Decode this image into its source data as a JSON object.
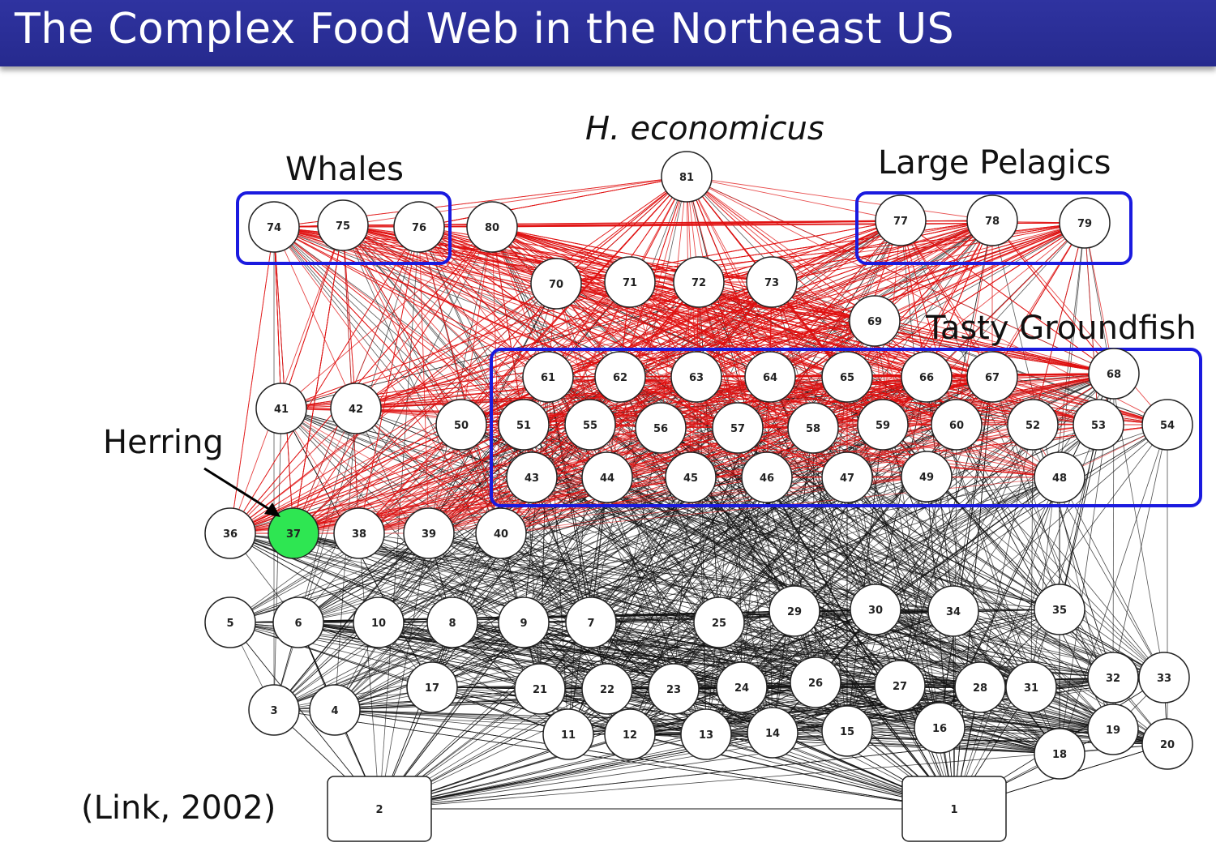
{
  "title": "The Complex Food Web in the Northeast US",
  "citation": "(Link, 2002)",
  "groups": {
    "whales": "Whales",
    "h_economicus": "H. economicus",
    "large_pelagics": "Large Pelagics",
    "tasty_groundfish": "Tasty Groundfish",
    "herring": "Herring"
  },
  "colors": {
    "title_bar": "#2a2e96",
    "group_box": "#1a1adf",
    "herring_node": "#2ee652",
    "predation_edge_red": "#e01010",
    "edge_black": "#111111"
  },
  "nodes": [
    "1",
    "2",
    "3",
    "4",
    "5",
    "6",
    "7",
    "8",
    "9",
    "10",
    "11",
    "12",
    "13",
    "14",
    "15",
    "16",
    "17",
    "18",
    "19",
    "20",
    "21",
    "22",
    "23",
    "24",
    "25",
    "26",
    "27",
    "28",
    "29",
    "30",
    "31",
    "32",
    "33",
    "34",
    "35",
    "36",
    "37",
    "38",
    "39",
    "40",
    "41",
    "42",
    "43",
    "44",
    "45",
    "46",
    "47",
    "48",
    "49",
    "50",
    "51",
    "52",
    "53",
    "54",
    "55",
    "56",
    "57",
    "58",
    "59",
    "60",
    "61",
    "62",
    "63",
    "64",
    "65",
    "66",
    "67",
    "68",
    "69",
    "70",
    "71",
    "72",
    "73",
    "74",
    "75",
    "76",
    "77",
    "78",
    "79",
    "80",
    "81"
  ],
  "highlighted_node": "37"
}
